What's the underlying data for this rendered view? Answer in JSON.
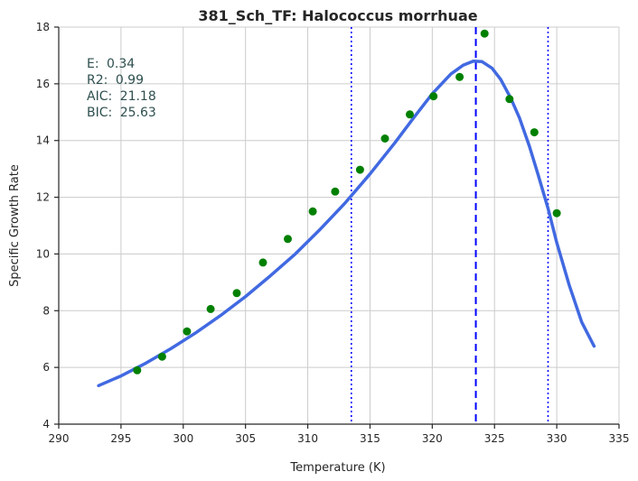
{
  "chart_data": {
    "type": "scatter",
    "title": "381_Sch_TF: Halococcus morrhuae",
    "xlabel": "Temperature (K)",
    "ylabel": "Specific Growth Rate",
    "xlim": [
      290,
      335
    ],
    "ylim": [
      4,
      18
    ],
    "xticks": [
      "290",
      "295",
      "300",
      "305",
      "310",
      "315",
      "320",
      "325",
      "330",
      "335"
    ],
    "yticks": [
      "4",
      "6",
      "8",
      "10",
      "12",
      "14",
      "16",
      "18"
    ],
    "grid": true,
    "stats": [
      {
        "label": "E:",
        "value": "0.34"
      },
      {
        "label": "R2:",
        "value": "0.99"
      },
      {
        "label": "AIC:",
        "value": "21.18"
      },
      {
        "label": "BIC:",
        "value": "25.63"
      }
    ],
    "series": [
      {
        "kind": "points",
        "color": "#008000",
        "x": [
          296.3,
          298.3,
          300.3,
          302.2,
          304.3,
          306.4,
          308.4,
          310.4,
          312.2,
          314.2,
          316.2,
          318.2,
          320.1,
          322.2,
          324.2,
          326.2,
          328.2,
          330.0
        ],
        "y": [
          5.9,
          6.38,
          7.27,
          8.06,
          8.62,
          9.7,
          10.53,
          11.5,
          12.2,
          12.97,
          14.07,
          14.92,
          15.56,
          16.24,
          17.77,
          15.46,
          14.29,
          11.44
        ]
      },
      {
        "kind": "fit-curve",
        "color": "#4169e1",
        "x": [
          293.2,
          295,
          297,
          299,
          301,
          303,
          305,
          307,
          309,
          311,
          313,
          315,
          317,
          318.5,
          320,
          321.5,
          322.5,
          323.3,
          324,
          324.8,
          325.5,
          326.3,
          327,
          327.8,
          328.5,
          329.3,
          330,
          331,
          332,
          333
        ],
        "y": [
          5.36,
          5.7,
          6.15,
          6.66,
          7.22,
          7.83,
          8.5,
          9.23,
          10.0,
          10.87,
          11.8,
          12.82,
          13.92,
          14.8,
          15.65,
          16.35,
          16.66,
          16.8,
          16.78,
          16.55,
          16.15,
          15.5,
          14.8,
          13.8,
          12.8,
          11.6,
          10.4,
          8.9,
          7.6,
          6.75
        ]
      }
    ],
    "vlines": [
      {
        "x": 323.5,
        "style": "dashed",
        "color": "#0000ff"
      },
      {
        "x": 313.5,
        "style": "dotted",
        "color": "#0000ff"
      },
      {
        "x": 329.3,
        "style": "dotted",
        "color": "#0000ff"
      }
    ]
  }
}
